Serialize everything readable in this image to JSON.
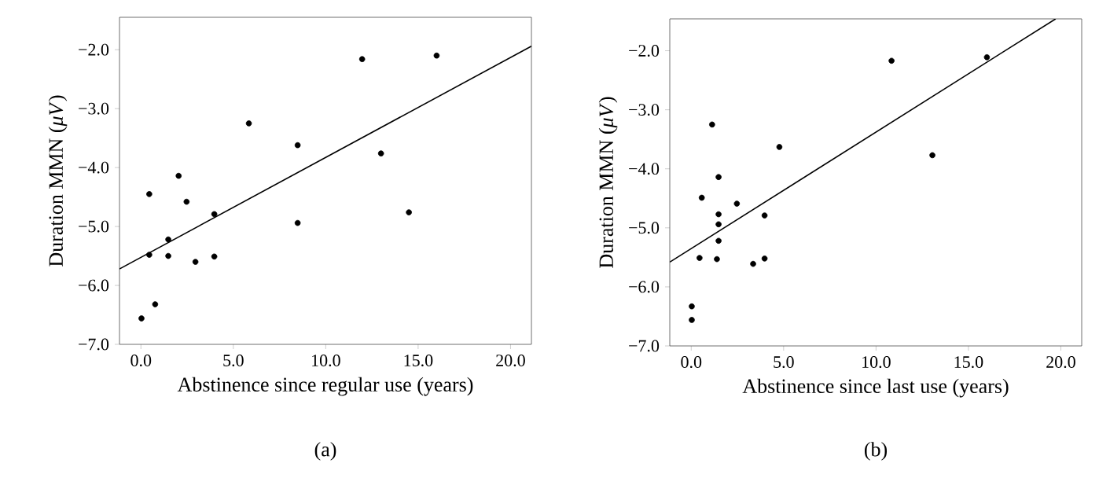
{
  "chart_data": [
    {
      "type": "scatter",
      "xlabel": "Abstinence since regular use (years)",
      "ylabel": "Duration MMN (*μV*)",
      "annotations": [
        "(a)"
      ],
      "xlim": [
        -1.16,
        21.13
      ],
      "ylim": [
        -7.0,
        -1.45
      ],
      "marker": "circle",
      "grid": false,
      "xticks": [
        {
          "value": 0,
          "label": "0.0"
        },
        {
          "value": 5,
          "label": "5.0"
        },
        {
          "value": 10,
          "label": "10.0"
        },
        {
          "value": 15,
          "label": "15.0"
        },
        {
          "value": 20,
          "label": "20.0"
        }
      ],
      "yticks": [
        {
          "value": -7,
          "label": "−7.0"
        },
        {
          "value": -6,
          "label": "−6.0"
        },
        {
          "value": -5,
          "label": "−5.0"
        },
        {
          "value": -4,
          "label": "−4.0"
        },
        {
          "value": -3,
          "label": "−3.0"
        },
        {
          "value": -2,
          "label": "−2.0"
        }
      ],
      "series": [
        {
          "color": "#000000",
          "x": [
            0.03,
            0.77,
            0.45,
            0.45,
            1.48,
            1.48,
            2.04,
            2.47,
            2.95,
            3.97,
            3.97,
            5.84,
            8.48,
            8.48,
            11.97,
            12.99,
            14.5,
            16.0
          ],
          "values": [
            -6.56,
            -6.32,
            -4.45,
            -5.48,
            -5.22,
            -5.5,
            -4.14,
            -4.58,
            -5.6,
            -4.79,
            -5.51,
            -3.25,
            -3.62,
            -4.94,
            -2.16,
            -3.76,
            -4.76,
            -2.1
          ]
        },
        {
          "type": "line",
          "marker": "none",
          "color": "#000000",
          "x": [
            -1.16,
            21.13
          ],
          "values": [
            -5.72,
            -1.94
          ]
        }
      ]
    },
    {
      "type": "scatter",
      "xlabel": "Abstinence since last use (years)",
      "ylabel": "Duration MMN (*μV*)",
      "annotations": [
        "(b)"
      ],
      "xlim": [
        -1.16,
        21.13
      ],
      "ylim": [
        -7.0,
        -1.46
      ],
      "marker": "circle",
      "grid": false,
      "xticks": [
        {
          "value": 0,
          "label": "0.0"
        },
        {
          "value": 5,
          "label": "5.0"
        },
        {
          "value": 10,
          "label": "10.0"
        },
        {
          "value": 15,
          "label": "15.0"
        },
        {
          "value": 20,
          "label": "20.0"
        }
      ],
      "yticks": [
        {
          "value": -7,
          "label": "−7.0"
        },
        {
          "value": -6,
          "label": "−6.0"
        },
        {
          "value": -5,
          "label": "−5.0"
        },
        {
          "value": -4,
          "label": "−4.0"
        },
        {
          "value": -3,
          "label": "−3.0"
        },
        {
          "value": -2,
          "label": "−2.0"
        }
      ],
      "series": [
        {
          "color": "#000000",
          "x": [
            0.03,
            0.03,
            0.45,
            0.57,
            1.13,
            1.39,
            1.48,
            1.48,
            1.48,
            1.48,
            2.47,
            3.35,
            3.97,
            3.97,
            4.77,
            10.84,
            13.05,
            16.0
          ],
          "values": [
            -6.33,
            -6.56,
            -5.51,
            -4.49,
            -3.25,
            -5.53,
            -4.14,
            -4.77,
            -4.94,
            -5.22,
            -4.59,
            -5.61,
            -4.79,
            -5.52,
            -3.63,
            -2.17,
            -3.77,
            -2.11
          ]
        },
        {
          "type": "line",
          "marker": "none",
          "color": "#000000",
          "x": [
            -1.16,
            19.72
          ],
          "values": [
            -5.58,
            -1.46
          ]
        }
      ]
    }
  ]
}
